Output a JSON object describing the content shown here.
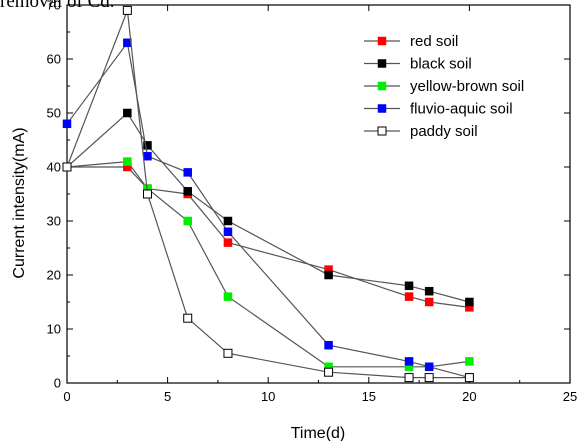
{
  "header_text": "removal of Cd.",
  "chart_data": {
    "type": "line",
    "xlabel": "Time(d)",
    "ylabel": "Current intensity(mA)",
    "xlim": [
      0,
      25
    ],
    "ylim": [
      0,
      70
    ],
    "xticks": [
      0,
      5,
      10,
      15,
      20,
      25
    ],
    "yticks": [
      0,
      10,
      20,
      30,
      40,
      50,
      60,
      70
    ],
    "grid": false,
    "legend_position": "top-right",
    "series": [
      {
        "name": "red soil",
        "color": "#ff0000",
        "marker": "filled-square",
        "x": [
          0,
          3,
          4,
          6,
          8,
          13,
          17,
          18,
          20
        ],
        "y": [
          40,
          40,
          36,
          35,
          26,
          21,
          16,
          15,
          14
        ]
      },
      {
        "name": "black soil",
        "color": "#000000",
        "marker": "filled-square",
        "x": [
          0,
          3,
          4,
          6,
          8,
          13,
          17,
          18,
          20
        ],
        "y": [
          40,
          50,
          44,
          35.5,
          30,
          20,
          18,
          17,
          15
        ]
      },
      {
        "name": "yellow-brown soil",
        "color": "#00ee00",
        "marker": "filled-square",
        "x": [
          0,
          3,
          4,
          6,
          8,
          13,
          17,
          18,
          20
        ],
        "y": [
          40,
          41,
          36,
          30,
          16,
          3,
          3,
          3,
          4
        ]
      },
      {
        "name": "fluvio-aquic soil",
        "color": "#0000ff",
        "marker": "filled-square",
        "x": [
          0,
          3,
          4,
          6,
          8,
          13,
          17,
          18,
          20
        ],
        "y": [
          48,
          63,
          42,
          39,
          28,
          7,
          4,
          3,
          1
        ]
      },
      {
        "name": "paddy soil",
        "color": "#000000",
        "marker": "open-square",
        "x": [
          0,
          3,
          4,
          6,
          8,
          13,
          17,
          18,
          20
        ],
        "y": [
          40,
          69,
          35,
          12,
          5.5,
          2,
          1,
          1,
          1
        ]
      }
    ]
  }
}
